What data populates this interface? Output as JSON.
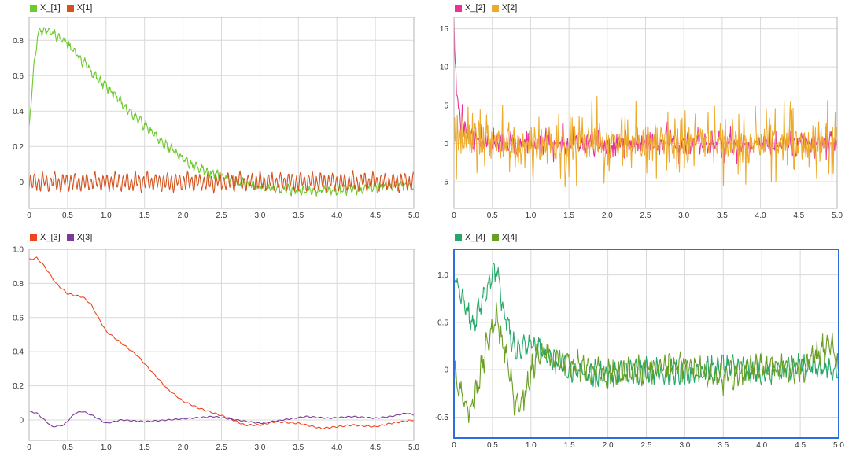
{
  "chart_data": [
    {
      "type": "line",
      "xlim": [
        0,
        5
      ],
      "ylim": [
        -0.15,
        0.93
      ],
      "xticks": [
        "0",
        "0.5",
        "1.0",
        "1.5",
        "2.0",
        "2.5",
        "3.0",
        "3.5",
        "4.0",
        "4.5",
        "5.0"
      ],
      "yticks": [
        "0",
        "0.2",
        "0.4",
        "0.6",
        "0.8"
      ],
      "grid": true,
      "legend_position": "top-left",
      "series": [
        {
          "name": "X_[1]",
          "color": "#6cc92e",
          "shape": "mono",
          "noise": 0.03,
          "seed": 3,
          "points": [
            [
              0,
              0.3
            ],
            [
              0.05,
              0.6
            ],
            [
              0.1,
              0.8
            ],
            [
              0.15,
              0.86
            ],
            [
              0.3,
              0.84
            ],
            [
              0.5,
              0.78
            ],
            [
              0.7,
              0.68
            ],
            [
              0.9,
              0.58
            ],
            [
              1.1,
              0.5
            ],
            [
              1.3,
              0.4
            ],
            [
              1.5,
              0.32
            ],
            [
              1.7,
              0.23
            ],
            [
              1.9,
              0.17
            ],
            [
              2.1,
              0.1
            ],
            [
              2.3,
              0.06
            ],
            [
              2.5,
              0.03
            ],
            [
              2.7,
              0.0
            ],
            [
              3.0,
              -0.03
            ],
            [
              3.5,
              -0.05
            ],
            [
              4.0,
              -0.05
            ],
            [
              4.5,
              -0.03
            ],
            [
              5.0,
              -0.02
            ]
          ]
        },
        {
          "name": "X[1]",
          "color": "#d35320",
          "shape": "osc",
          "noise": 0.04,
          "seed": 11,
          "points": [
            [
              0,
              0.0
            ],
            [
              5.0,
              0.0
            ]
          ]
        }
      ]
    },
    {
      "type": "line",
      "xlim": [
        0,
        5
      ],
      "ylim": [
        -8.5,
        16.5
      ],
      "xticks": [
        "0",
        "0.5",
        "1.0",
        "1.5",
        "2.0",
        "2.5",
        "3.0",
        "3.5",
        "4.0",
        "4.5",
        "5.0"
      ],
      "yticks": [
        "-5",
        "0",
        "5",
        "10",
        "15"
      ],
      "grid": true,
      "legend_position": "top-left",
      "series": [
        {
          "name": "X_[2]",
          "color": "#e8349a",
          "shape": "spike",
          "noise": 1.5,
          "seed": 21,
          "points": [
            [
              0,
              15
            ],
            [
              0.03,
              8
            ],
            [
              0.08,
              3
            ],
            [
              0.2,
              1
            ],
            [
              0.5,
              0
            ],
            [
              5.0,
              0
            ]
          ]
        },
        {
          "name": "X[2]",
          "color": "#edaa2c",
          "shape": "spike",
          "noise": 3.2,
          "seed": 37,
          "points": [
            [
              0,
              0
            ],
            [
              5.0,
              0
            ]
          ]
        }
      ]
    },
    {
      "type": "line",
      "xlim": [
        0,
        5
      ],
      "ylim": [
        -0.12,
        1.0
      ],
      "xticks": [
        "0",
        "0.5",
        "1.0",
        "1.5",
        "2.0",
        "2.5",
        "3.0",
        "3.5",
        "4.0",
        "4.5",
        "5.0"
      ],
      "yticks": [
        "0",
        "0.2",
        "0.4",
        "0.6",
        "0.8",
        "1.0"
      ],
      "grid": true,
      "legend_position": "top-left",
      "series": [
        {
          "name": "X_[3]",
          "color": "#f0441d",
          "shape": "smooth",
          "noise": 0.004,
          "seed": 5,
          "points": [
            [
              0,
              0.94
            ],
            [
              0.1,
              0.95
            ],
            [
              0.2,
              0.9
            ],
            [
              0.35,
              0.8
            ],
            [
              0.5,
              0.74
            ],
            [
              0.6,
              0.73
            ],
            [
              0.7,
              0.72
            ],
            [
              0.8,
              0.68
            ],
            [
              0.9,
              0.6
            ],
            [
              1.0,
              0.52
            ],
            [
              1.2,
              0.45
            ],
            [
              1.4,
              0.38
            ],
            [
              1.6,
              0.28
            ],
            [
              1.8,
              0.18
            ],
            [
              2.0,
              0.11
            ],
            [
              2.2,
              0.07
            ],
            [
              2.4,
              0.04
            ],
            [
              2.6,
              0.01
            ],
            [
              2.8,
              -0.03
            ],
            [
              3.0,
              -0.03
            ],
            [
              3.2,
              -0.01
            ],
            [
              3.5,
              -0.02
            ],
            [
              3.8,
              -0.05
            ],
            [
              4.0,
              -0.04
            ],
            [
              4.2,
              -0.03
            ],
            [
              4.5,
              -0.04
            ],
            [
              4.7,
              -0.02
            ],
            [
              5.0,
              0.0
            ]
          ]
        },
        {
          "name": "X[3]",
          "color": "#7b3a96",
          "shape": "smooth",
          "noise": 0.003,
          "seed": 9,
          "points": [
            [
              0,
              0.05
            ],
            [
              0.1,
              0.04
            ],
            [
              0.2,
              0.0
            ],
            [
              0.3,
              -0.04
            ],
            [
              0.45,
              -0.03
            ],
            [
              0.6,
              0.04
            ],
            [
              0.7,
              0.05
            ],
            [
              0.85,
              0.02
            ],
            [
              1.0,
              -0.02
            ],
            [
              1.2,
              0.0
            ],
            [
              1.5,
              -0.01
            ],
            [
              1.8,
              0.0
            ],
            [
              2.1,
              0.01
            ],
            [
              2.4,
              0.02
            ],
            [
              2.7,
              0.0
            ],
            [
              3.0,
              -0.02
            ],
            [
              3.3,
              0.0
            ],
            [
              3.6,
              0.02
            ],
            [
              3.9,
              0.01
            ],
            [
              4.2,
              0.02
            ],
            [
              4.5,
              0.01
            ],
            [
              4.7,
              0.02
            ],
            [
              4.9,
              0.04
            ],
            [
              5.0,
              0.03
            ]
          ]
        }
      ]
    },
    {
      "type": "line",
      "xlim": [
        0,
        5
      ],
      "ylim": [
        -0.72,
        1.27
      ],
      "xticks": [
        "0",
        "0.5",
        "1.0",
        "1.5",
        "2.0",
        "2.5",
        "3.0",
        "3.5",
        "4.0",
        "4.5",
        "5.0"
      ],
      "yticks": [
        "-0.5",
        "0",
        "0.5",
        "1.0"
      ],
      "grid": true,
      "legend_position": "top-left",
      "selected": true,
      "series": [
        {
          "name": "X_[4]",
          "color": "#25a768",
          "shape": "mono",
          "noise": 0.13,
          "seed": 41,
          "points": [
            [
              0,
              1.0
            ],
            [
              0.1,
              0.8
            ],
            [
              0.25,
              0.45
            ],
            [
              0.35,
              0.7
            ],
            [
              0.45,
              0.9
            ],
            [
              0.55,
              1.05
            ],
            [
              0.65,
              0.6
            ],
            [
              0.8,
              0.2
            ],
            [
              1.0,
              0.3
            ],
            [
              1.2,
              0.15
            ],
            [
              1.5,
              0.0
            ],
            [
              2.0,
              -0.05
            ],
            [
              2.5,
              0.0
            ],
            [
              3.0,
              -0.05
            ],
            [
              3.5,
              0.05
            ],
            [
              4.0,
              -0.05
            ],
            [
              4.5,
              0.05
            ],
            [
              5.0,
              0.0
            ]
          ]
        },
        {
          "name": "X[4]",
          "color": "#6b9e24",
          "shape": "mono",
          "noise": 0.15,
          "seed": 53,
          "points": [
            [
              0,
              0.0
            ],
            [
              0.1,
              -0.3
            ],
            [
              0.2,
              -0.45
            ],
            [
              0.3,
              -0.2
            ],
            [
              0.45,
              0.35
            ],
            [
              0.55,
              0.55
            ],
            [
              0.7,
              0.1
            ],
            [
              0.8,
              -0.4
            ],
            [
              0.9,
              -0.3
            ],
            [
              1.1,
              0.2
            ],
            [
              1.3,
              0.1
            ],
            [
              1.6,
              0.05
            ],
            [
              2.0,
              -0.05
            ],
            [
              2.5,
              0.0
            ],
            [
              3.0,
              0.05
            ],
            [
              3.5,
              -0.1
            ],
            [
              4.0,
              0.05
            ],
            [
              4.5,
              0.0
            ],
            [
              4.9,
              0.3
            ],
            [
              5.0,
              0.0
            ]
          ]
        }
      ]
    }
  ]
}
